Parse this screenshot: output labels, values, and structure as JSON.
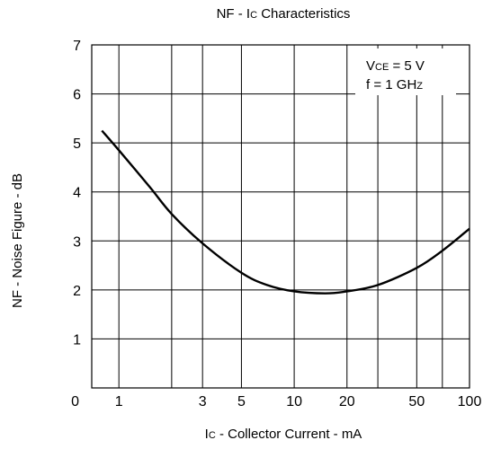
{
  "chart_data": {
    "type": "line",
    "title_parts": {
      "pre": "NF - I",
      "sub": "C",
      "post": " Characteristics"
    },
    "xlabel_parts": {
      "pre": "I",
      "sub": "C",
      "post": " - Collector Current - mA"
    },
    "ylabel": "NF - Noise Figure - dB",
    "x_scale": "log",
    "xlim": [
      0.7,
      100
    ],
    "ylim": [
      0,
      7
    ],
    "grid": true,
    "x_ticks": [
      {
        "value": 1,
        "label": "1"
      },
      {
        "value": 3,
        "label": "3"
      },
      {
        "value": 5,
        "label": "5"
      },
      {
        "value": 10,
        "label": "10"
      },
      {
        "value": 20,
        "label": "20"
      },
      {
        "value": 50,
        "label": "50"
      },
      {
        "value": 100,
        "label": "100"
      }
    ],
    "x_minor_gridlines": [
      2,
      30,
      70
    ],
    "y_ticks": [
      {
        "value": 0,
        "label": "0"
      },
      {
        "value": 1,
        "label": "1"
      },
      {
        "value": 2,
        "label": "2"
      },
      {
        "value": 3,
        "label": "3"
      },
      {
        "value": 4,
        "label": "4"
      },
      {
        "value": 5,
        "label": "5"
      },
      {
        "value": 6,
        "label": "6"
      },
      {
        "value": 7,
        "label": "7"
      }
    ],
    "annotations": [
      {
        "pre": "V",
        "sub": "CE",
        "post": " = 5 V"
      },
      {
        "pre": "f = 1 GH",
        "sub": "Z",
        "post": ""
      }
    ],
    "series": [
      {
        "x": [
          0.8,
          1,
          1.5,
          2,
          3,
          5,
          7,
          10,
          15,
          20,
          30,
          50,
          70,
          100
        ],
        "y": [
          5.25,
          4.85,
          4.1,
          3.55,
          2.95,
          2.35,
          2.1,
          1.97,
          1.93,
          1.97,
          2.1,
          2.45,
          2.8,
          3.25
        ]
      }
    ]
  }
}
